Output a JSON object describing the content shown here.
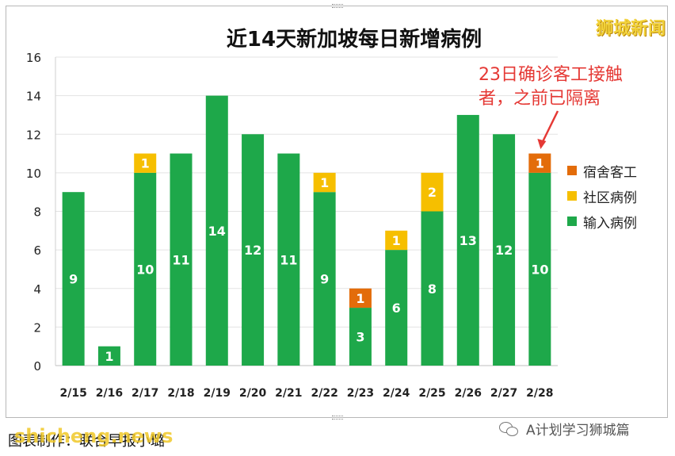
{
  "brand": "狮城新闻",
  "annotation": "23日确诊客工接触者，之前已隔离",
  "footer": {
    "credit": "图表制作：联合早报小璐",
    "watermark": "shicheng.news",
    "account": "A计划学习狮城篇"
  },
  "colors": {
    "dormitory": "#e36c0a",
    "community": "#f6bf00",
    "imported": "#1ea84a",
    "arrow": "#e53935",
    "brand": "#f2d23a"
  },
  "chart_data": {
    "type": "bar",
    "stacked": true,
    "title": "近14天新加坡每日新增病例",
    "categories": [
      "2/15",
      "2/16",
      "2/17",
      "2/18",
      "2/19",
      "2/20",
      "2/21",
      "2/22",
      "2/23",
      "2/24",
      "2/25",
      "2/26",
      "2/27",
      "2/28"
    ],
    "series": [
      {
        "name": "输入病例",
        "color": "#1ea84a",
        "values": [
          9,
          1,
          10,
          11,
          14,
          12,
          11,
          9,
          3,
          6,
          8,
          13,
          12,
          10
        ]
      },
      {
        "name": "社区病例",
        "color": "#f6bf00",
        "values": [
          0,
          0,
          1,
          0,
          0,
          0,
          0,
          1,
          0,
          1,
          2,
          0,
          0,
          0
        ]
      },
      {
        "name": "宿舍客工",
        "color": "#e36c0a",
        "values": [
          0,
          0,
          0,
          0,
          0,
          0,
          0,
          0,
          1,
          0,
          0,
          0,
          0,
          1
        ]
      }
    ],
    "legend_order": [
      "宿舍客工",
      "社区病例",
      "输入病例"
    ],
    "legend_position": "right",
    "ylim": [
      0,
      16
    ],
    "yticks": [
      "0",
      "2",
      "4",
      "6",
      "8",
      "10",
      "12",
      "14",
      "16"
    ],
    "grid": true,
    "xlabel": "",
    "ylabel": ""
  }
}
